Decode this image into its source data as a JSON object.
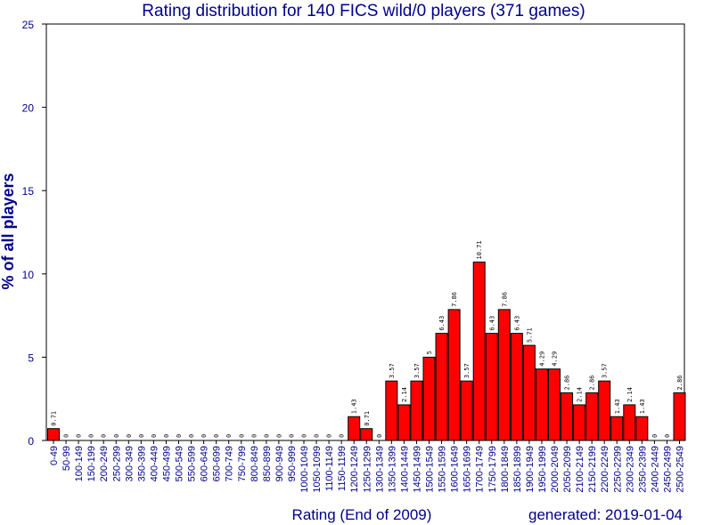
{
  "chart_data": {
    "type": "bar",
    "title": "Rating distribution for 140 FICS wild/0 players (371 games)",
    "xlabel": "Rating (End of 2009)",
    "ylabel": "% of all players",
    "generated": "generated: 2019-01-04",
    "ylim": [
      0,
      25
    ],
    "yticks": [
      0,
      5,
      10,
      15,
      20,
      25
    ],
    "bar_color": "#ff0000",
    "label_color": "#00008b",
    "categories": [
      "0-49",
      "50-99",
      "100-149",
      "150-199",
      "200-249",
      "250-299",
      "300-349",
      "350-399",
      "400-449",
      "450-499",
      "500-549",
      "550-599",
      "600-649",
      "650-699",
      "700-749",
      "750-799",
      "800-849",
      "850-899",
      "900-949",
      "950-999",
      "1000-1049",
      "1050-1099",
      "1100-1149",
      "1150-1199",
      "1200-1249",
      "1250-1299",
      "1300-1349",
      "1350-1399",
      "1400-1449",
      "1450-1499",
      "1500-1549",
      "1550-1599",
      "1600-1649",
      "1650-1699",
      "1700-1749",
      "1750-1799",
      "1800-1849",
      "1850-1899",
      "1900-1949",
      "1950-1999",
      "2000-2049",
      "2050-2099",
      "2100-2149",
      "2150-2199",
      "2200-2249",
      "2250-2299",
      "2300-2349",
      "2350-2399",
      "2400-2449",
      "2450-2499",
      "2500-2549"
    ],
    "values": [
      0.71,
      0,
      0,
      0,
      0,
      0,
      0,
      0,
      0,
      0,
      0,
      0,
      0,
      0,
      0,
      0,
      0,
      0,
      0,
      0,
      0,
      0,
      0,
      0,
      1.43,
      0.71,
      0,
      3.57,
      2.14,
      3.57,
      5,
      6.43,
      7.86,
      3.57,
      10.71,
      6.43,
      7.86,
      6.43,
      5.71,
      4.29,
      4.29,
      2.86,
      2.14,
      2.86,
      3.57,
      1.43,
      2.14,
      1.43,
      0,
      0,
      2.86
    ],
    "value_labels": [
      "0.71",
      "0",
      "0",
      "0",
      "0",
      "0",
      "0",
      "0",
      "0",
      "0",
      "0",
      "0",
      "0",
      "0",
      "0",
      "0",
      "0",
      "0",
      "0",
      "0",
      "0",
      "0",
      "0",
      "0",
      "1.43",
      "0.71",
      "0",
      "3.57",
      "2.14",
      "3.57",
      "5",
      "6.43",
      "7.86",
      "3.57",
      "10.71",
      "6.43",
      "7.86",
      "6.43",
      "5.71",
      "4.29",
      "4.29",
      "2.86",
      "2.14",
      "2.86",
      "3.57",
      "1.43",
      "2.14",
      "1.43",
      "0",
      "0",
      "2.86"
    ]
  }
}
